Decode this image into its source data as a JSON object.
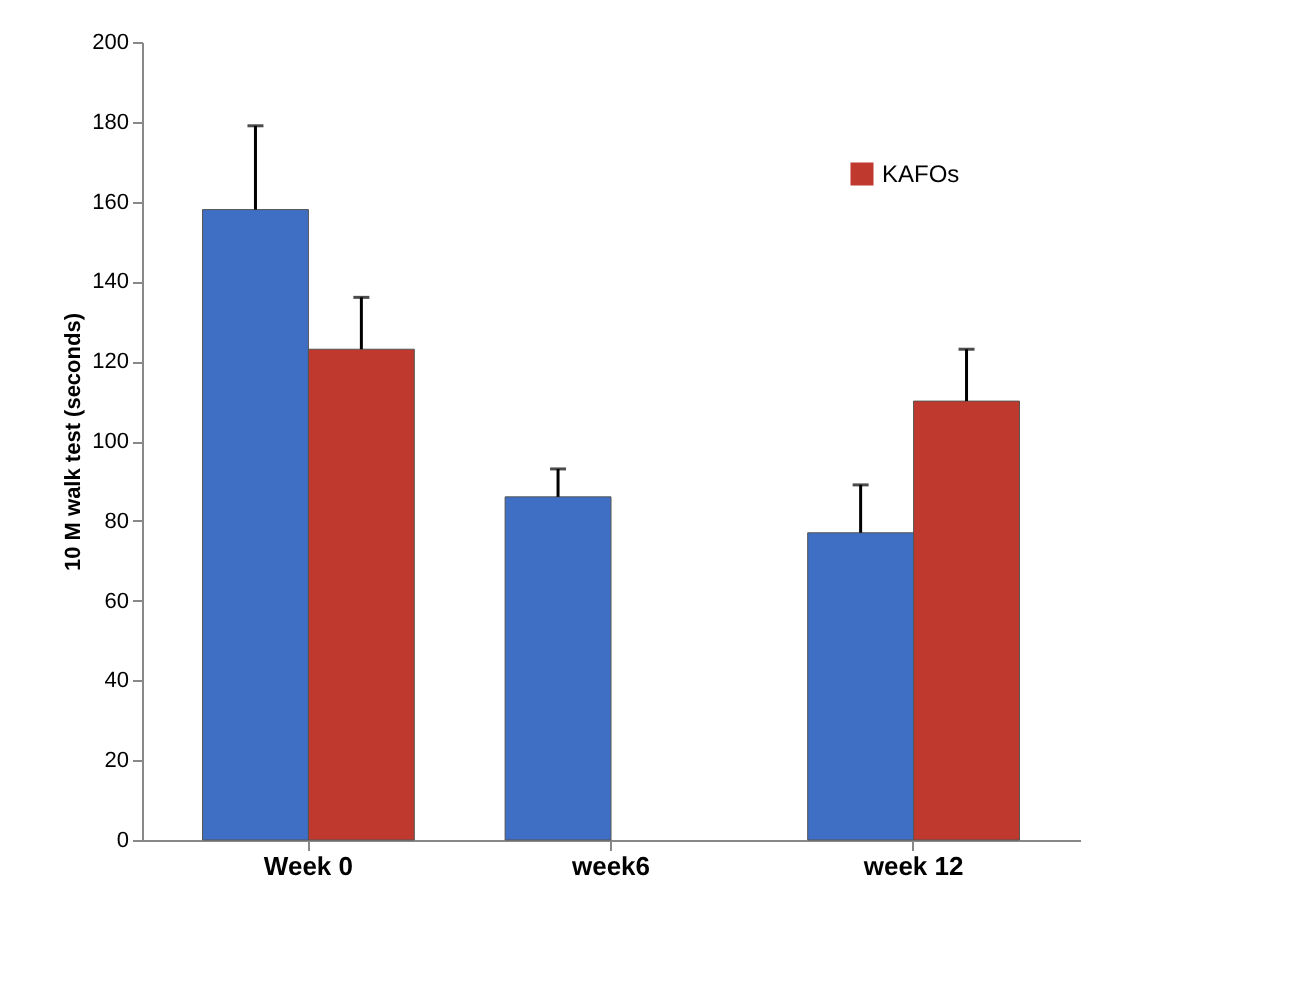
{
  "chart_data": {
    "type": "bar",
    "ylabel": "10 M walk test (seconds)",
    "categories": [
      "Week 0",
      "week6",
      "week 12"
    ],
    "series": [
      {
        "color": "#3f6fc4",
        "values": [
          158,
          86,
          77
        ],
        "errors": [
          [
            158,
            179
          ],
          [
            86,
            93
          ],
          [
            77,
            89
          ]
        ]
      },
      {
        "name": "KAFOs",
        "color": "#c0392f",
        "values": [
          123,
          null,
          110
        ],
        "errors": [
          [
            123,
            136
          ],
          null,
          [
            110,
            123
          ]
        ]
      }
    ],
    "ylim": [
      0,
      200
    ],
    "yticks": [
      0,
      20,
      40,
      60,
      80,
      100,
      120,
      140,
      160,
      180,
      200
    ],
    "grid": false,
    "legend": "top right"
  }
}
